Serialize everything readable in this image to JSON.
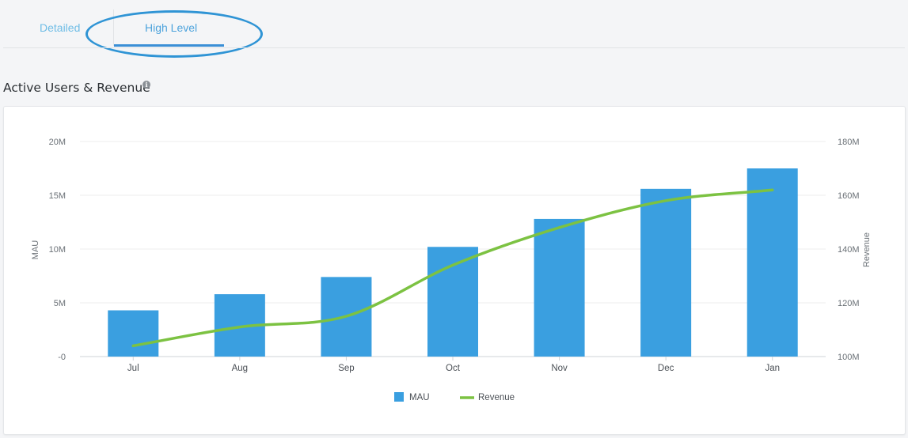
{
  "tabs": {
    "items": [
      {
        "label": "Detailed"
      },
      {
        "label": "High Level"
      }
    ],
    "active": "High Level"
  },
  "section": {
    "title": "Active Users & Revenue",
    "info_icon": "info-icon"
  },
  "chart_data": {
    "type": "bar",
    "categories": [
      "Jul",
      "Aug",
      "Sep",
      "Oct",
      "Nov",
      "Dec",
      "Jan"
    ],
    "series": [
      {
        "name": "MAU",
        "type": "bar",
        "axis": "left",
        "color": "#3a9fe0",
        "values": [
          4.3,
          5.8,
          7.4,
          10.2,
          12.8,
          15.6,
          17.5
        ]
      },
      {
        "name": "Revenue",
        "type": "line",
        "axis": "right",
        "color": "#7cc242",
        "values": [
          104,
          111,
          115,
          134,
          148,
          158,
          162
        ]
      }
    ],
    "ylabel": "MAU",
    "y2label": "Revenue",
    "ylim": [
      0,
      20
    ],
    "y2lim": [
      100,
      180
    ],
    "yticks": [
      "-0",
      "5M",
      "10M",
      "15M",
      "20M"
    ],
    "y2ticks": [
      "100M",
      "120M",
      "140M",
      "160M",
      "180M"
    ],
    "grid": true,
    "legend_position": "bottom-center"
  }
}
